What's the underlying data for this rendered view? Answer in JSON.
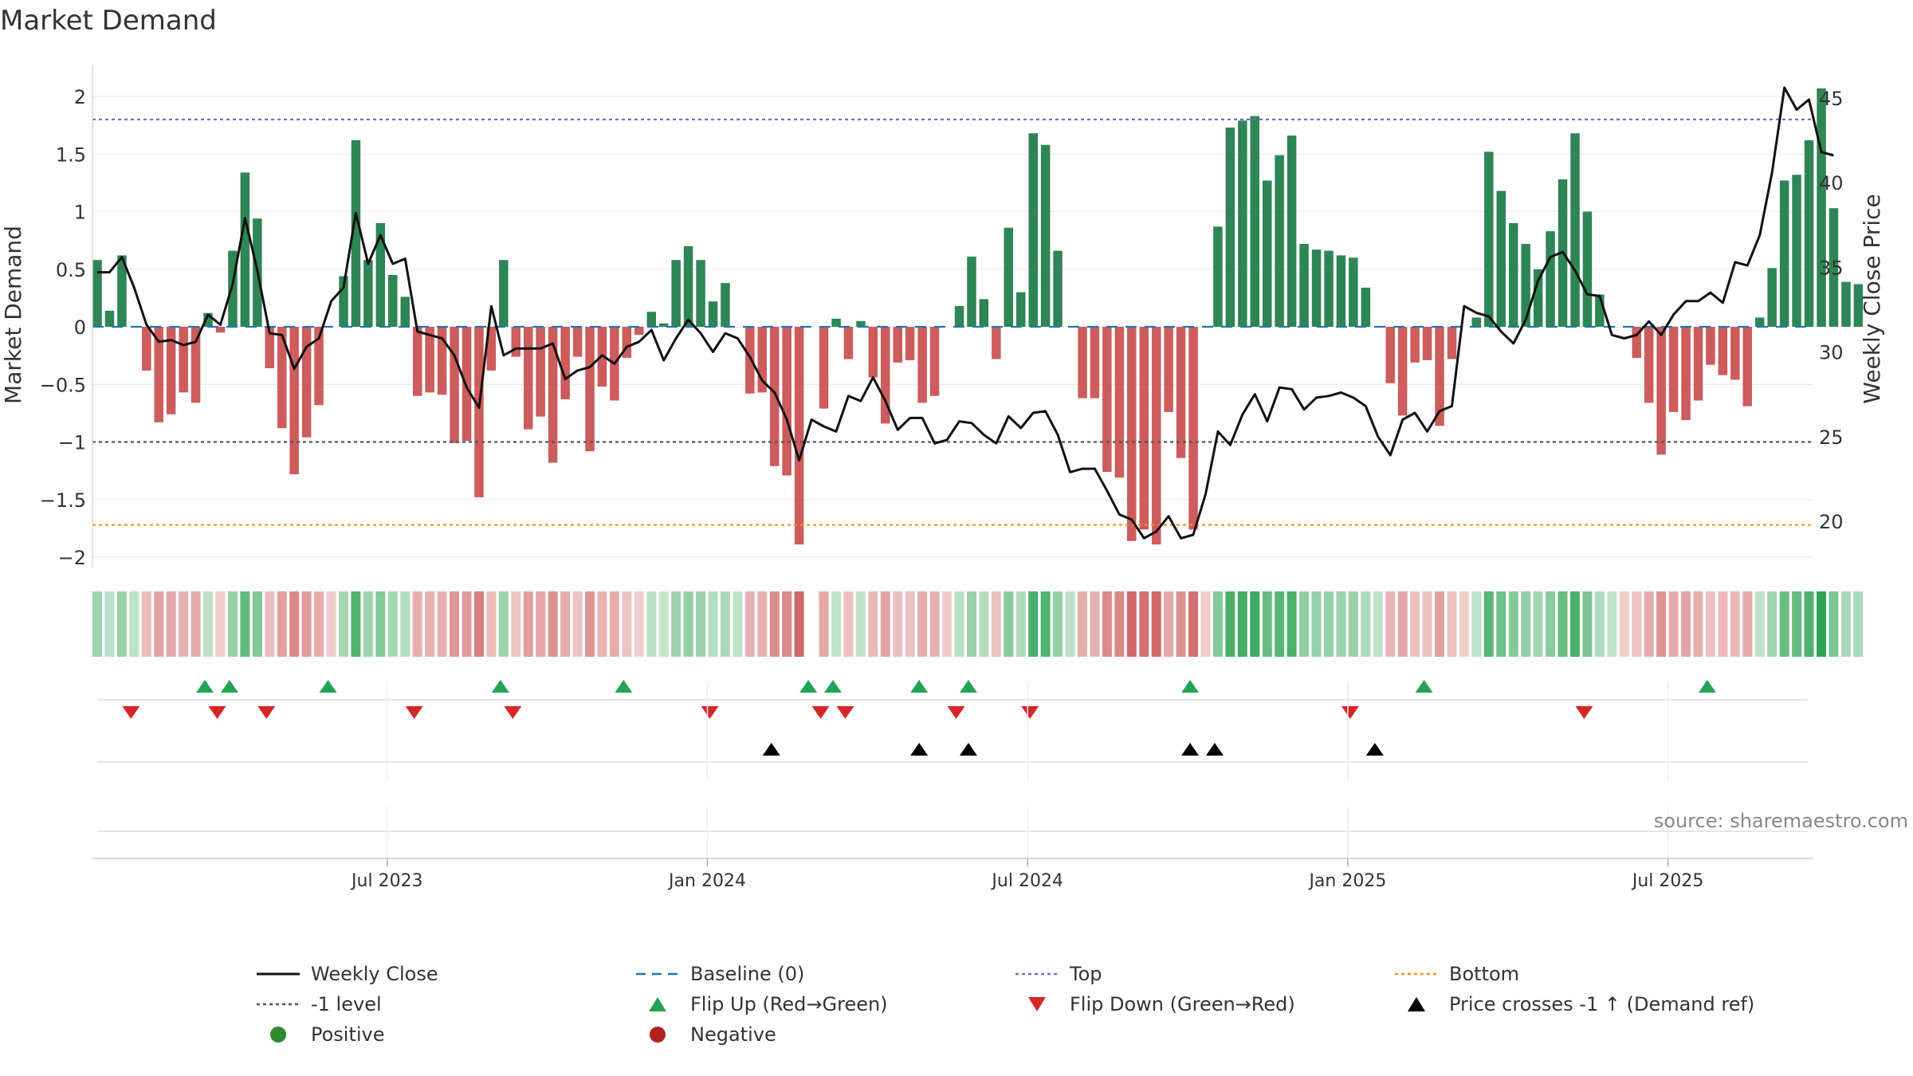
{
  "title": "Market Demand",
  "source": "source: sharemaestro.com",
  "colors": {
    "positive": "#2e8555",
    "negative": "#cd5c5c",
    "close": "#111111",
    "baseline": "#1f77b4",
    "top": "#7b6cc8",
    "bottom": "#ff8c1a",
    "minus_one": "#555555",
    "flip_up": "#22a355",
    "flip_down": "#d62728",
    "cross": "#000000"
  },
  "chart_data": {
    "type": "bar",
    "title": "Market Demand",
    "ylabel": "Market Demand",
    "y2label": "Weekly Close Price",
    "ylim": [
      -2.2,
      2.35
    ],
    "y2lim": [
      17.8,
      46.7
    ],
    "yticks": [
      "2",
      "1.5",
      "1",
      "0.5",
      "0",
      "−0.5",
      "−1",
      "−1.5",
      "−2"
    ],
    "y2ticks": [
      "45",
      "40",
      "35",
      "30",
      "25",
      "20"
    ],
    "xticks": [
      "Jul 2023",
      "Jan 2024",
      "Jul 2024",
      "Jan 2025",
      "Jul 2025"
    ],
    "xtick_weeks": [
      24,
      50,
      76,
      102,
      128
    ],
    "top_level": 1.8,
    "bottom_level": -1.72,
    "minus_one_level": -1,
    "demand": [
      0.58,
      0.14,
      0.62,
      0,
      -0.38,
      -0.83,
      -0.76,
      -0.57,
      -0.66,
      0.12,
      -0.05,
      0.66,
      1.34,
      0.94,
      -0.36,
      -0.88,
      -1.28,
      -0.96,
      -0.68,
      0,
      0.44,
      1.62,
      0.58,
      0.9,
      0.45,
      0.26,
      -0.6,
      -0.57,
      -0.59,
      -1.01,
      -0.99,
      -1.48,
      -0.38,
      0.58,
      -0.26,
      -0.89,
      -0.78,
      -1.18,
      -0.63,
      -0.26,
      -1.08,
      -0.52,
      -0.64,
      -0.27,
      -0.07,
      0.13,
      0.03,
      0.58,
      0.7,
      0.58,
      0.22,
      0.38,
      0,
      -0.58,
      -0.57,
      -1.21,
      -1.29,
      -1.89,
      0,
      -0.71,
      0.07,
      -0.28,
      0.05,
      -0.44,
      -0.84,
      -0.31,
      -0.29,
      -0.66,
      -0.6,
      0,
      0.18,
      0.61,
      0.24,
      -0.28,
      0.86,
      0.3,
      1.68,
      1.58,
      0.66,
      0,
      -0.62,
      -0.62,
      -1.26,
      -1.31,
      -1.86,
      -1.76,
      -1.89,
      -0.74,
      -1.14,
      -1.76,
      0,
      0.87,
      1.73,
      1.79,
      1.83,
      1.27,
      1.49,
      1.66,
      0.72,
      0.67,
      0.66,
      0.62,
      0.6,
      0.34,
      0,
      -0.49,
      -0.77,
      -0.31,
      -0.29,
      -0.86,
      -0.28,
      0,
      0.08,
      1.52,
      1.18,
      0.9,
      0.72,
      0.5,
      0.83,
      1.28,
      1.68,
      1.0,
      0.28,
      0,
      0,
      -0.27,
      -0.66,
      -1.11,
      -0.74,
      -0.81,
      -0.64,
      -0.33,
      -0.42,
      -0.46,
      -0.69,
      0.08,
      0.51,
      1.27,
      1.32,
      1.62,
      2.07,
      1.03,
      0.39,
      0.37
    ],
    "close": [
      34.7,
      34.7,
      35.6,
      33.8,
      31.6,
      30.6,
      30.7,
      30.4,
      30.6,
      32.2,
      31.6,
      34.0,
      37.9,
      34.8,
      31.1,
      31.0,
      29.0,
      30.3,
      30.8,
      33.0,
      33.8,
      38.2,
      35.2,
      36.9,
      35.2,
      35.5,
      31.2,
      31.0,
      30.8,
      29.8,
      27.9,
      26.7,
      32.7,
      29.8,
      30.2,
      30.2,
      30.2,
      30.5,
      28.4,
      28.9,
      29.1,
      29.8,
      29.3,
      30.3,
      30.6,
      31.3,
      29.5,
      30.8,
      31.9,
      31.1,
      30.0,
      31.1,
      30.8,
      29.7,
      28.3,
      27.6,
      26.0,
      23.6,
      26.0,
      25.6,
      25.3,
      27.4,
      27.1,
      28.5,
      27.1,
      25.4,
      26.1,
      26.1,
      24.6,
      24.8,
      25.9,
      25.8,
      25.1,
      24.6,
      26.2,
      25.5,
      26.4,
      26.5,
      25.1,
      22.9,
      23.1,
      23.1,
      21.8,
      20.4,
      20.1,
      19.0,
      19.4,
      20.3,
      19.0,
      19.2,
      21.6,
      25.3,
      24.5,
      26.3,
      27.5,
      25.9,
      27.9,
      27.8,
      26.6,
      27.3,
      27.4,
      27.6,
      27.3,
      26.8,
      25.0,
      23.9,
      26.0,
      26.4,
      25.3,
      26.5,
      26.8,
      32.7,
      32.3,
      32.1,
      31.2,
      30.5,
      31.9,
      34.2,
      35.6,
      35.9,
      34.8,
      33.4,
      33.3,
      31.0,
      30.8,
      31.0,
      31.8,
      31.0,
      32.2,
      33.0,
      33.0,
      33.5,
      32.9,
      35.3,
      35.1,
      36.9,
      40.6,
      45.6,
      44.3,
      44.9,
      41.8,
      41.6
    ],
    "bar_strength": [
      0.58,
      0.14,
      0.62,
      0.1,
      0.38,
      0.83,
      0.76,
      0.57,
      0.66,
      0.12,
      0.05,
      0.66,
      1.34,
      0.94,
      0.36,
      0.88,
      1.28,
      0.96,
      0.68,
      0.1,
      0.44,
      1.62,
      0.58,
      0.9,
      0.45,
      0.26,
      0.6,
      0.57,
      0.59,
      1.01,
      0.99,
      1.48,
      0.38,
      0.58,
      0.26,
      0.89,
      0.78,
      1.18,
      0.63,
      0.26,
      1.08,
      0.52,
      0.64,
      0.27,
      0.07,
      0.13,
      0.03,
      0.58,
      0.7,
      0.58,
      0.22,
      0.38,
      0.1,
      0.58,
      0.57,
      1.21,
      1.29,
      1.89,
      0,
      0.71,
      0.07,
      0.28,
      0.05,
      0.44,
      0.84,
      0.31,
      0.29,
      0.66,
      0.6,
      0.1,
      0.18,
      0.61,
      0.24,
      0.28,
      0.86,
      0.3,
      1.68,
      1.58,
      0.66,
      0.1,
      0.62,
      0.62,
      1.26,
      1.31,
      1.86,
      1.76,
      1.89,
      0.74,
      1.14,
      1.76,
      0.1,
      0.87,
      1.73,
      1.79,
      1.83,
      1.27,
      1.49,
      1.66,
      0.72,
      0.67,
      0.66,
      0.62,
      0.6,
      0.34,
      0.1,
      0.49,
      0.77,
      0.31,
      0.29,
      0.86,
      0.28,
      0.1,
      0.08,
      1.52,
      1.18,
      0.9,
      0.72,
      0.5,
      0.83,
      1.28,
      1.68,
      1.0,
      0.28,
      0.1,
      0.1,
      0.27,
      0.66,
      1.11,
      0.74,
      0.81,
      0.64,
      0.33,
      0.42,
      0.46,
      0.69,
      0.08,
      0.51,
      1.27,
      1.32,
      1.62,
      2.07,
      1.03,
      0.39,
      0.37
    ],
    "flip_up_weeks": [
      9,
      11,
      19,
      33,
      43,
      58,
      60,
      67,
      71,
      89,
      108,
      131
    ],
    "flip_down_weeks": [
      3,
      10,
      14,
      26,
      34,
      50,
      59,
      61,
      70,
      76,
      102,
      121
    ],
    "cross_weeks": [
      55,
      67,
      71,
      89,
      91,
      104
    ],
    "legend": [
      {
        "label": "Weekly Close",
        "kind": "line"
      },
      {
        "label": "Baseline (0)",
        "kind": "dash"
      },
      {
        "label": "Top",
        "kind": "dot-top"
      },
      {
        "label": "Bottom",
        "kind": "dot-bottom"
      },
      {
        "label": "-1 level",
        "kind": "dot-minus"
      },
      {
        "label": "Flip Up (Red→Green)",
        "kind": "tri-up"
      },
      {
        "label": "Flip Down (Green→Red)",
        "kind": "tri-down"
      },
      {
        "label": "Price crosses -1 ↑ (Demand ref)",
        "kind": "tri-cross"
      },
      {
        "label": "Positive",
        "kind": "dot-pos"
      },
      {
        "label": "Negative",
        "kind": "dot-neg"
      }
    ]
  }
}
